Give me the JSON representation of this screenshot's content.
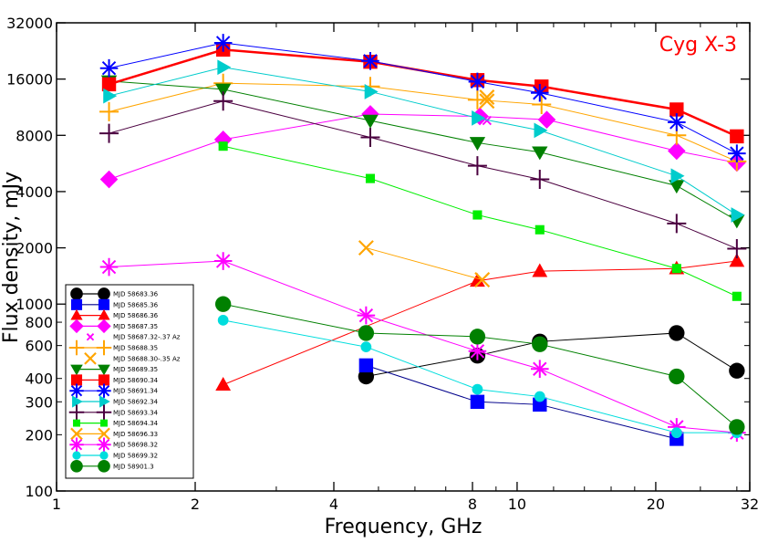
{
  "chart_data": {
    "type": "line",
    "title": "",
    "annotation": "Cyg X-3",
    "xlabel": "Frequency, GHz",
    "ylabel": "Flux density, mJy",
    "xscale": "log",
    "yscale": "log",
    "xlim": [
      1,
      32
    ],
    "ylim": [
      100,
      32000
    ],
    "xticks": [
      1,
      2,
      4,
      8,
      10,
      20,
      32
    ],
    "yticks_major": [
      100,
      1000,
      2000,
      4000,
      8000,
      16000,
      32000
    ],
    "yticks_minor": [
      200,
      300,
      400,
      600,
      800
    ],
    "grid": false,
    "legend_position": "bottom-left",
    "series": [
      {
        "name": "MJD 58683.36",
        "color": "#000000",
        "line_color": "#000000",
        "marker": "circle",
        "x": [
          4.7,
          8.2,
          11.2,
          22.2,
          30
        ],
        "y": [
          410,
          530,
          630,
          700,
          440
        ]
      },
      {
        "name": "MJD 58685.36",
        "color": "#0000ff",
        "line_color": "#00008b",
        "marker": "square",
        "x": [
          4.7,
          8.2,
          11.2,
          22.2
        ],
        "y": [
          470,
          300,
          290,
          190
        ]
      },
      {
        "name": "MJD 58686.36",
        "color": "#ff0000",
        "line_color": "#ff0000",
        "marker": "triangle-up",
        "x": [
          2.3,
          8.2,
          11.2,
          22.2,
          30
        ],
        "y": [
          370,
          1330,
          1500,
          1550,
          1700
        ]
      },
      {
        "name": "MJD 58687.35",
        "color": "#ff00ff",
        "line_color": "#ff00ff",
        "marker": "diamond",
        "x": [
          1.3,
          2.3,
          4.8,
          8.3,
          11.6,
          22.2,
          30
        ],
        "y": [
          4650,
          7600,
          10400,
          10100,
          9700,
          6600,
          5700
        ]
      },
      {
        "name": "MJD 58687.32-.37 Az",
        "color": "#ff00ff",
        "line_color": "",
        "marker": "x-small",
        "x": [
          8.6
        ],
        "y": [
          9600
        ]
      },
      {
        "name": "MJD 58688.35",
        "color": "#ffa500",
        "line_color": "#ffa500",
        "marker": "plus",
        "x": [
          1.3,
          2.3,
          4.8,
          8.2,
          11.3,
          22.2,
          30
        ],
        "y": [
          10700,
          15200,
          14600,
          12400,
          11700,
          8000,
          5800
        ]
      },
      {
        "name": "MJD 58688.30-.35 Az",
        "color": "#ffa500",
        "line_color": "",
        "marker": "x",
        "x": [
          8.6,
          8.6
        ],
        "y": [
          12800,
          12200
        ]
      },
      {
        "name": "MJD 58689.35",
        "color": "#008000",
        "line_color": "#008000",
        "marker": "triangle-down",
        "x": [
          1.3,
          2.3,
          4.8,
          8.2,
          11.2,
          22.2,
          30
        ],
        "y": [
          15600,
          14100,
          9600,
          7300,
          6500,
          4300,
          2800
        ]
      },
      {
        "name": "MJD 58690.34",
        "color": "#ff0000",
        "line_color": "#ff0000",
        "marker": "square",
        "x": [
          1.3,
          2.3,
          4.8,
          8.2,
          11.3,
          22.2,
          30
        ],
        "y": [
          15000,
          23000,
          19800,
          15800,
          14600,
          11000,
          7900
        ]
      },
      {
        "name": "MJD 58691.34",
        "color": "#0000ff",
        "line_color": "#0000ff",
        "marker": "star",
        "x": [
          1.3,
          2.3,
          4.8,
          8.2,
          11.2,
          22.2,
          30
        ],
        "y": [
          18300,
          25000,
          20000,
          15500,
          13500,
          9400,
          6400
        ]
      },
      {
        "name": "MJD 58692.34",
        "color": "#00cccc",
        "line_color": "#00cccc",
        "marker": "triangle-right",
        "x": [
          1.3,
          2.3,
          4.8,
          8.2,
          11.2,
          22.2,
          30
        ],
        "y": [
          13000,
          18500,
          13700,
          9900,
          8500,
          4850,
          3000
        ]
      },
      {
        "name": "MJD 58693.34",
        "color": "#4b0040",
        "line_color": "#4b0040",
        "marker": "plus",
        "x": [
          1.3,
          2.3,
          4.8,
          8.2,
          11.2,
          22.2,
          30
        ],
        "y": [
          8200,
          12200,
          7800,
          5500,
          4650,
          2700,
          1980
        ]
      },
      {
        "name": "MJD 58694.34",
        "color": "#00ee00",
        "line_color": "#00ee00",
        "marker": "square-small",
        "x": [
          2.3,
          4.8,
          8.2,
          11.2,
          22.2,
          30
        ],
        "y": [
          7000,
          4700,
          3000,
          2500,
          1550,
          1100
        ]
      },
      {
        "name": "MJD 58696.33",
        "color": "#ffa500",
        "line_color": "#ffa500",
        "marker": "x",
        "x": [
          4.7,
          8.4
        ],
        "y": [
          2000,
          1350
        ]
      },
      {
        "name": "MJD 58698.32",
        "color": "#ff00ff",
        "line_color": "#ff00ff",
        "marker": "star",
        "x": [
          1.3,
          2.3,
          4.7,
          8.2,
          11.2,
          22.2,
          30
        ],
        "y": [
          1580,
          1700,
          870,
          560,
          450,
          220,
          205
        ]
      },
      {
        "name": "MJD 58699.32",
        "color": "#00dddd",
        "line_color": "#00dddd",
        "marker": "circle-small",
        "x": [
          2.3,
          4.7,
          8.2,
          11.2,
          22.2,
          30
        ],
        "y": [
          820,
          590,
          350,
          320,
          205,
          205
        ]
      },
      {
        "name": "MJD 58901.3",
        "color": "#008000",
        "line_color": "#008000",
        "marker": "circle",
        "x": [
          2.3,
          4.7,
          8.2,
          11.2,
          22.2,
          30
        ],
        "y": [
          1000,
          700,
          670,
          610,
          410,
          220
        ]
      }
    ]
  }
}
